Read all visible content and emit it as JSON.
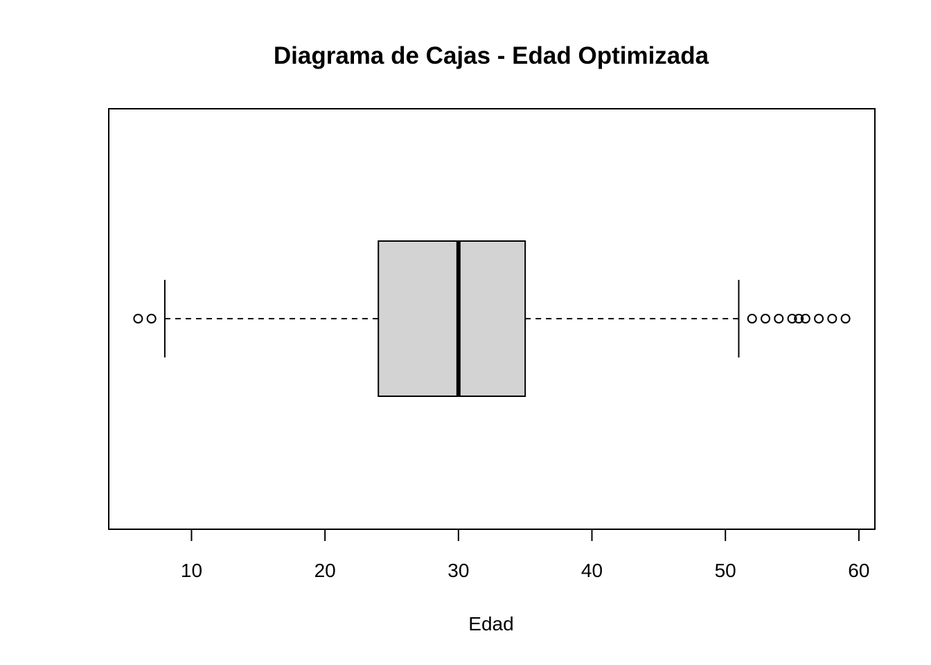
{
  "chart_data": {
    "type": "boxplot",
    "title": "Diagrama de Cajas - Edad Optimizada",
    "xlabel": "Edad",
    "ylabel": "",
    "orientation": "horizontal",
    "xlim": [
      3.8,
      61.2
    ],
    "xticks": [
      10,
      20,
      30,
      40,
      50,
      60
    ],
    "xtick_labels": [
      "10",
      "20",
      "30",
      "40",
      "50",
      "60"
    ],
    "box": {
      "whisker_low": 8,
      "q1": 24,
      "median": 30,
      "q3": 35,
      "whisker_high": 51
    },
    "outliers": [
      6,
      7,
      52,
      53,
      54,
      55,
      55.5,
      56,
      57,
      58,
      59
    ],
    "box_fill": "#d3d3d3",
    "line_color": "#000000"
  }
}
